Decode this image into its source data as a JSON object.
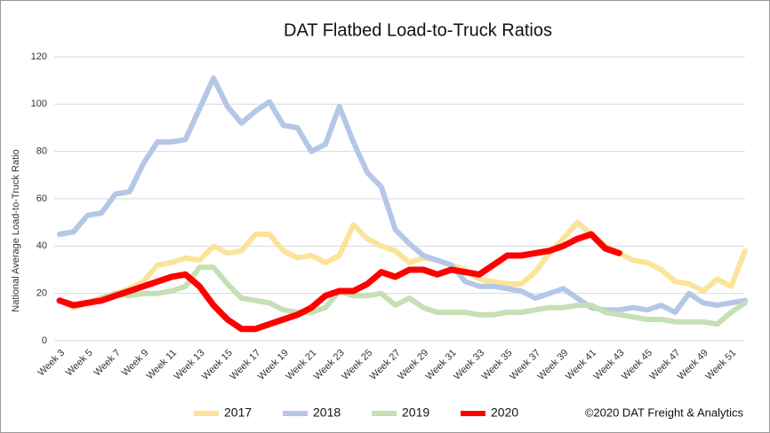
{
  "chart_data": {
    "type": "line",
    "title": "DAT Flatbed Load-to-Truck Ratios",
    "ylabel": "National Average Load-to-Truck Ratio",
    "annotation": "©2020 DAT Freight & Analytics",
    "categories": [
      "Week 3",
      null,
      "Week 5",
      null,
      "Week 7",
      null,
      "Week 9",
      null,
      "Week 11",
      null,
      "Week 13",
      null,
      "Week 15",
      null,
      "Week 17",
      null,
      "Week 19",
      null,
      "Week 21",
      null,
      "Week 23",
      null,
      "Week 25",
      null,
      "Week 27",
      null,
      "Week 29",
      null,
      "Week 31",
      null,
      "Week 33",
      null,
      "Week 35",
      null,
      "Week 37",
      null,
      "Week 39",
      null,
      "Week 41",
      null,
      "Week 43",
      null,
      "Week 45",
      null,
      "Week 47",
      null,
      "Week 49",
      null,
      "Week 51",
      null
    ],
    "series": [
      {
        "name": "2017",
        "color": "#fbe39a",
        "values": [
          17,
          14,
          16,
          18,
          20,
          22,
          25,
          32,
          33,
          35,
          34,
          40,
          37,
          38,
          45,
          45,
          38,
          35,
          36,
          33,
          36,
          49,
          43,
          40,
          38,
          33,
          35,
          34,
          32,
          30,
          26,
          25,
          24,
          24,
          29,
          37,
          43,
          50,
          45,
          40,
          37,
          34,
          33,
          30,
          25,
          24,
          21,
          26,
          23,
          38
        ]
      },
      {
        "name": "2018",
        "color": "#b4c7e7",
        "values": [
          45,
          46,
          53,
          54,
          62,
          63,
          75,
          84,
          84,
          85,
          98,
          111,
          99,
          92,
          97,
          101,
          91,
          90,
          80,
          83,
          99,
          84,
          71,
          65,
          47,
          41,
          36,
          34,
          32,
          25,
          23,
          23,
          22,
          21,
          18,
          20,
          22,
          18,
          14,
          13,
          13,
          14,
          13,
          15,
          12,
          20,
          16,
          15,
          16,
          17
        ]
      },
      {
        "name": "2019",
        "color": "#c5e0b4",
        "values": [
          17,
          15,
          16,
          18,
          20,
          19,
          20,
          20,
          21,
          23,
          31,
          31,
          24,
          18,
          17,
          16,
          13,
          12,
          12,
          14,
          21,
          19,
          19,
          20,
          15,
          18,
          14,
          12,
          12,
          12,
          11,
          11,
          12,
          12,
          13,
          14,
          14,
          15,
          15,
          12,
          11,
          10,
          9,
          9,
          8,
          8,
          8,
          7,
          12,
          16
        ]
      },
      {
        "name": "2020",
        "color": "#ff0000",
        "values": [
          17,
          15,
          16,
          17,
          19,
          21,
          23,
          25,
          27,
          28,
          23,
          15,
          9,
          5,
          5,
          7,
          9,
          11,
          14,
          19,
          21,
          21,
          24,
          29,
          27,
          30,
          30,
          28,
          30,
          29,
          28,
          32,
          36,
          36,
          37,
          38,
          40,
          43,
          45,
          39,
          37,
          null,
          null,
          null,
          null,
          null,
          null,
          null,
          null,
          null
        ]
      }
    ],
    "ylim": [
      0,
      120
    ],
    "yticks": [
      0,
      20,
      40,
      60,
      80,
      100,
      120
    ],
    "grid": true,
    "legend": "bottom"
  }
}
